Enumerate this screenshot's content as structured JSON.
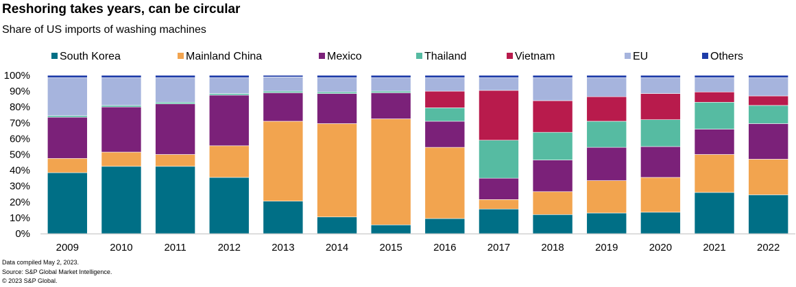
{
  "header": {
    "title": "Reshoring takes years, can be circular",
    "subtitle": "Share of US imports of washing machines"
  },
  "footer": {
    "line1": "Data compiled May 2, 2023.",
    "line2": "Source: S&P Global Market Intelligence.",
    "line3": "© 2023 S&P Global."
  },
  "chart_data": {
    "type": "bar",
    "stacked": true,
    "title": "Reshoring takes years, can be circular",
    "subtitle": "Share of US imports of washing machines",
    "xlabel": "",
    "ylabel": "",
    "ylim": [
      0,
      100
    ],
    "y_ticks": [
      "0%",
      "10%",
      "20%",
      "30%",
      "40%",
      "50%",
      "60%",
      "70%",
      "80%",
      "90%",
      "100%"
    ],
    "grid": false,
    "legend_position": "top",
    "categories": [
      "2009",
      "2010",
      "2011",
      "2012",
      "2013",
      "2014",
      "2015",
      "2016",
      "2017",
      "2018",
      "2019",
      "2020",
      "2021",
      "2022"
    ],
    "series": [
      {
        "name": "South Korea",
        "color": "#006f86",
        "values": [
          38.5,
          42.5,
          42.5,
          35.5,
          20.5,
          10.5,
          5.5,
          9.5,
          15.5,
          12,
          13,
          13.5,
          26,
          24.5
        ]
      },
      {
        "name": "Mainland China",
        "color": "#f2a44f",
        "values": [
          9,
          9,
          7.5,
          20,
          50.5,
          59,
          67,
          45,
          6,
          14.5,
          20.5,
          22,
          24,
          22.5
        ]
      },
      {
        "name": "Mexico",
        "color": "#7b2179",
        "values": [
          26,
          28.5,
          32,
          32,
          18,
          19,
          16.5,
          16.5,
          13.5,
          20,
          21,
          19.5,
          16,
          22.5
        ]
      },
      {
        "name": "Thailand",
        "color": "#56bba2",
        "values": [
          1,
          1,
          1,
          1,
          1,
          1,
          1,
          8.5,
          24,
          17.5,
          16.5,
          17,
          17,
          11.5
        ]
      },
      {
        "name": "Vietnam",
        "color": "#b81b4c",
        "values": [
          0,
          0,
          0,
          0,
          0,
          0,
          0,
          10.5,
          31.5,
          20,
          15.5,
          16.5,
          6.5,
          6
        ]
      },
      {
        "name": "EU",
        "color": "#a6b4dd",
        "values": [
          24,
          17.5,
          15.5,
          10,
          9,
          9,
          8.5,
          8.5,
          8,
          14.5,
          12,
          10,
          9,
          11.5
        ]
      },
      {
        "name": "Others",
        "color": "#1e3ca8",
        "values": [
          1.5,
          1.5,
          1.5,
          1.5,
          1,
          1.5,
          1.5,
          1.5,
          1.5,
          1.5,
          1.5,
          1.5,
          1.5,
          1.5
        ]
      }
    ]
  }
}
